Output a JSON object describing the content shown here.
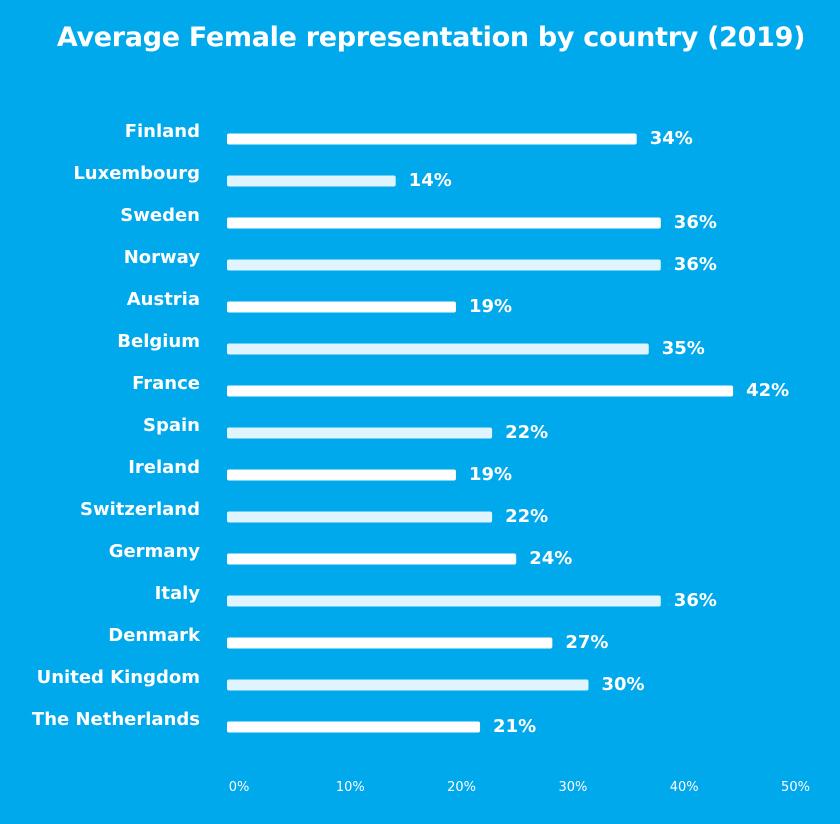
{
  "chart_data": {
    "type": "bar",
    "orientation": "horizontal",
    "title": "Average Female representation by country (2019)",
    "xlabel": "",
    "ylabel": "",
    "xlim": [
      0,
      50
    ],
    "x_ticks": [
      "0%",
      "10%",
      "20%",
      "30%",
      "40%",
      "50%"
    ],
    "categories": [
      "Finland",
      "Luxembourg",
      "Sweden",
      "Norway",
      "Austria",
      "Belgium",
      "France",
      "Spain",
      "Ireland",
      "Switzerland",
      "Germany",
      "Italy",
      "Denmark",
      "United Kingdom",
      "The Netherlands"
    ],
    "values": [
      34,
      14,
      36,
      36,
      19,
      35,
      42,
      22,
      19,
      22,
      24,
      36,
      27,
      30,
      21
    ],
    "value_labels": [
      "34%",
      "14%",
      "36%",
      "36%",
      "19%",
      "35%",
      "42%",
      "22%",
      "19%",
      "22%",
      "24%",
      "36%",
      "27%",
      "30%",
      "21%"
    ],
    "grid": false,
    "legend": "none",
    "colors": {
      "background": "#00a8ec",
      "bar_primary": "#ffffff",
      "bar_alternate": "#dff4fc",
      "text": "#ffffff"
    }
  }
}
